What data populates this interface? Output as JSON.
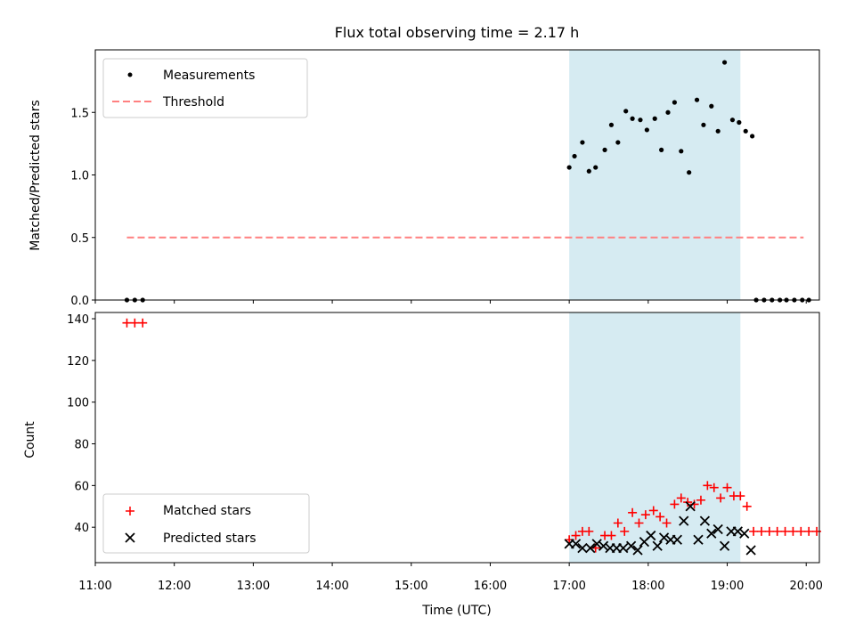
{
  "chart_data": [
    {
      "type": "scatter",
      "title": "Flux total observing time = 2.17 h",
      "xlabel": "",
      "ylabel": "Matched/Predicted stars",
      "xlim": [
        "11:00",
        "20:10"
      ],
      "ylim": [
        0,
        2.0
      ],
      "yticks": [
        "0.0",
        "0.5",
        "1.0",
        "1.5"
      ],
      "grid": false,
      "legend_position": "upper left",
      "highlight_span": {
        "start": "17:00",
        "end": "19:10",
        "color": "#add8e6"
      },
      "series": [
        {
          "name": "Measurements",
          "marker": "dot",
          "color": "#000000",
          "points": [
            [
              "11:24",
              0.0
            ],
            [
              "11:30",
              0.0
            ],
            [
              "11:36",
              0.0
            ],
            [
              "17:00",
              1.06
            ],
            [
              "17:04",
              1.15
            ],
            [
              "17:10",
              1.26
            ],
            [
              "17:15",
              1.03
            ],
            [
              "17:20",
              1.06
            ],
            [
              "17:27",
              1.2
            ],
            [
              "17:32",
              1.4
            ],
            [
              "17:37",
              1.26
            ],
            [
              "17:43",
              1.51
            ],
            [
              "17:48",
              1.45
            ],
            [
              "17:54",
              1.44
            ],
            [
              "17:59",
              1.36
            ],
            [
              "18:05",
              1.45
            ],
            [
              "18:10",
              1.2
            ],
            [
              "18:15",
              1.5
            ],
            [
              "18:20",
              1.58
            ],
            [
              "18:25",
              1.19
            ],
            [
              "18:31",
              1.02
            ],
            [
              "18:37",
              1.6
            ],
            [
              "18:42",
              1.4
            ],
            [
              "18:48",
              1.55
            ],
            [
              "18:53",
              1.35
            ],
            [
              "18:58",
              1.9
            ],
            [
              "19:04",
              1.44
            ],
            [
              "19:09",
              1.42
            ],
            [
              "19:14",
              1.35
            ],
            [
              "19:19",
              1.31
            ],
            [
              "19:22",
              0.0
            ],
            [
              "19:28",
              0.0
            ],
            [
              "19:34",
              0.0
            ],
            [
              "19:40",
              0.0
            ],
            [
              "19:45",
              0.0
            ],
            [
              "19:51",
              0.0
            ],
            [
              "19:57",
              0.0
            ],
            [
              "20:02",
              0.0
            ]
          ]
        },
        {
          "name": "Threshold",
          "style": "dashed",
          "color": "#ff8080",
          "points": [
            [
              "11:24",
              0.5
            ],
            [
              "19:58",
              0.5
            ]
          ]
        }
      ]
    },
    {
      "type": "scatter",
      "title": "",
      "xlabel": "Time (UTC)",
      "ylabel": "Count",
      "xlim": [
        "11:00",
        "20:10"
      ],
      "ylim": [
        23,
        143
      ],
      "yticks": [
        "40",
        "60",
        "80",
        "100",
        "120",
        "140"
      ],
      "xticks": [
        "11:00",
        "12:00",
        "13:00",
        "14:00",
        "15:00",
        "16:00",
        "17:00",
        "18:00",
        "19:00",
        "20:00"
      ],
      "grid": false,
      "legend_position": "lower left",
      "highlight_span": {
        "start": "17:00",
        "end": "19:10",
        "color": "#add8e6"
      },
      "series": [
        {
          "name": "Matched stars",
          "marker": "plus",
          "color": "#ff0000",
          "points": [
            [
              "11:24",
              138
            ],
            [
              "11:30",
              138
            ],
            [
              "11:36",
              138
            ],
            [
              "17:00",
              34
            ],
            [
              "17:05",
              36
            ],
            [
              "17:10",
              38
            ],
            [
              "17:15",
              38
            ],
            [
              "17:20",
              30
            ],
            [
              "17:27",
              36
            ],
            [
              "17:32",
              36
            ],
            [
              "17:37",
              42
            ],
            [
              "17:42",
              38
            ],
            [
              "17:48",
              47
            ],
            [
              "17:53",
              42
            ],
            [
              "17:58",
              46
            ],
            [
              "18:04",
              48
            ],
            [
              "18:09",
              45
            ],
            [
              "18:14",
              42
            ],
            [
              "18:20",
              51
            ],
            [
              "18:25",
              54
            ],
            [
              "18:30",
              52
            ],
            [
              "18:35",
              51
            ],
            [
              "18:40",
              53
            ],
            [
              "18:45",
              60
            ],
            [
              "18:50",
              59
            ],
            [
              "18:55",
              54
            ],
            [
              "19:00",
              59
            ],
            [
              "19:05",
              55
            ],
            [
              "19:10",
              55
            ],
            [
              "19:15",
              50
            ],
            [
              "19:20",
              38
            ],
            [
              "19:26",
              38
            ],
            [
              "19:32",
              38
            ],
            [
              "19:38",
              38
            ],
            [
              "19:44",
              38
            ],
            [
              "19:50",
              38
            ],
            [
              "19:56",
              38
            ],
            [
              "20:02",
              38
            ],
            [
              "20:08",
              38
            ]
          ]
        },
        {
          "name": "Predicted stars",
          "marker": "x",
          "color": "#000000",
          "points": [
            [
              "17:00",
              32
            ],
            [
              "17:05",
              32
            ],
            [
              "17:10",
              30
            ],
            [
              "17:16",
              30
            ],
            [
              "17:21",
              32
            ],
            [
              "17:26",
              31
            ],
            [
              "17:31",
              30
            ],
            [
              "17:36",
              30
            ],
            [
              "17:41",
              30
            ],
            [
              "17:47",
              31
            ],
            [
              "17:52",
              29
            ],
            [
              "17:57",
              33
            ],
            [
              "18:02",
              36
            ],
            [
              "18:07",
              31
            ],
            [
              "18:12",
              35
            ],
            [
              "18:17",
              34
            ],
            [
              "18:22",
              34
            ],
            [
              "18:27",
              43
            ],
            [
              "18:32",
              50
            ],
            [
              "18:38",
              34
            ],
            [
              "18:43",
              43
            ],
            [
              "18:48",
              37
            ],
            [
              "18:53",
              39
            ],
            [
              "18:58",
              31
            ],
            [
              "19:03",
              38
            ],
            [
              "19:08",
              38
            ],
            [
              "19:13",
              37
            ],
            [
              "19:18",
              29
            ]
          ]
        }
      ]
    }
  ]
}
